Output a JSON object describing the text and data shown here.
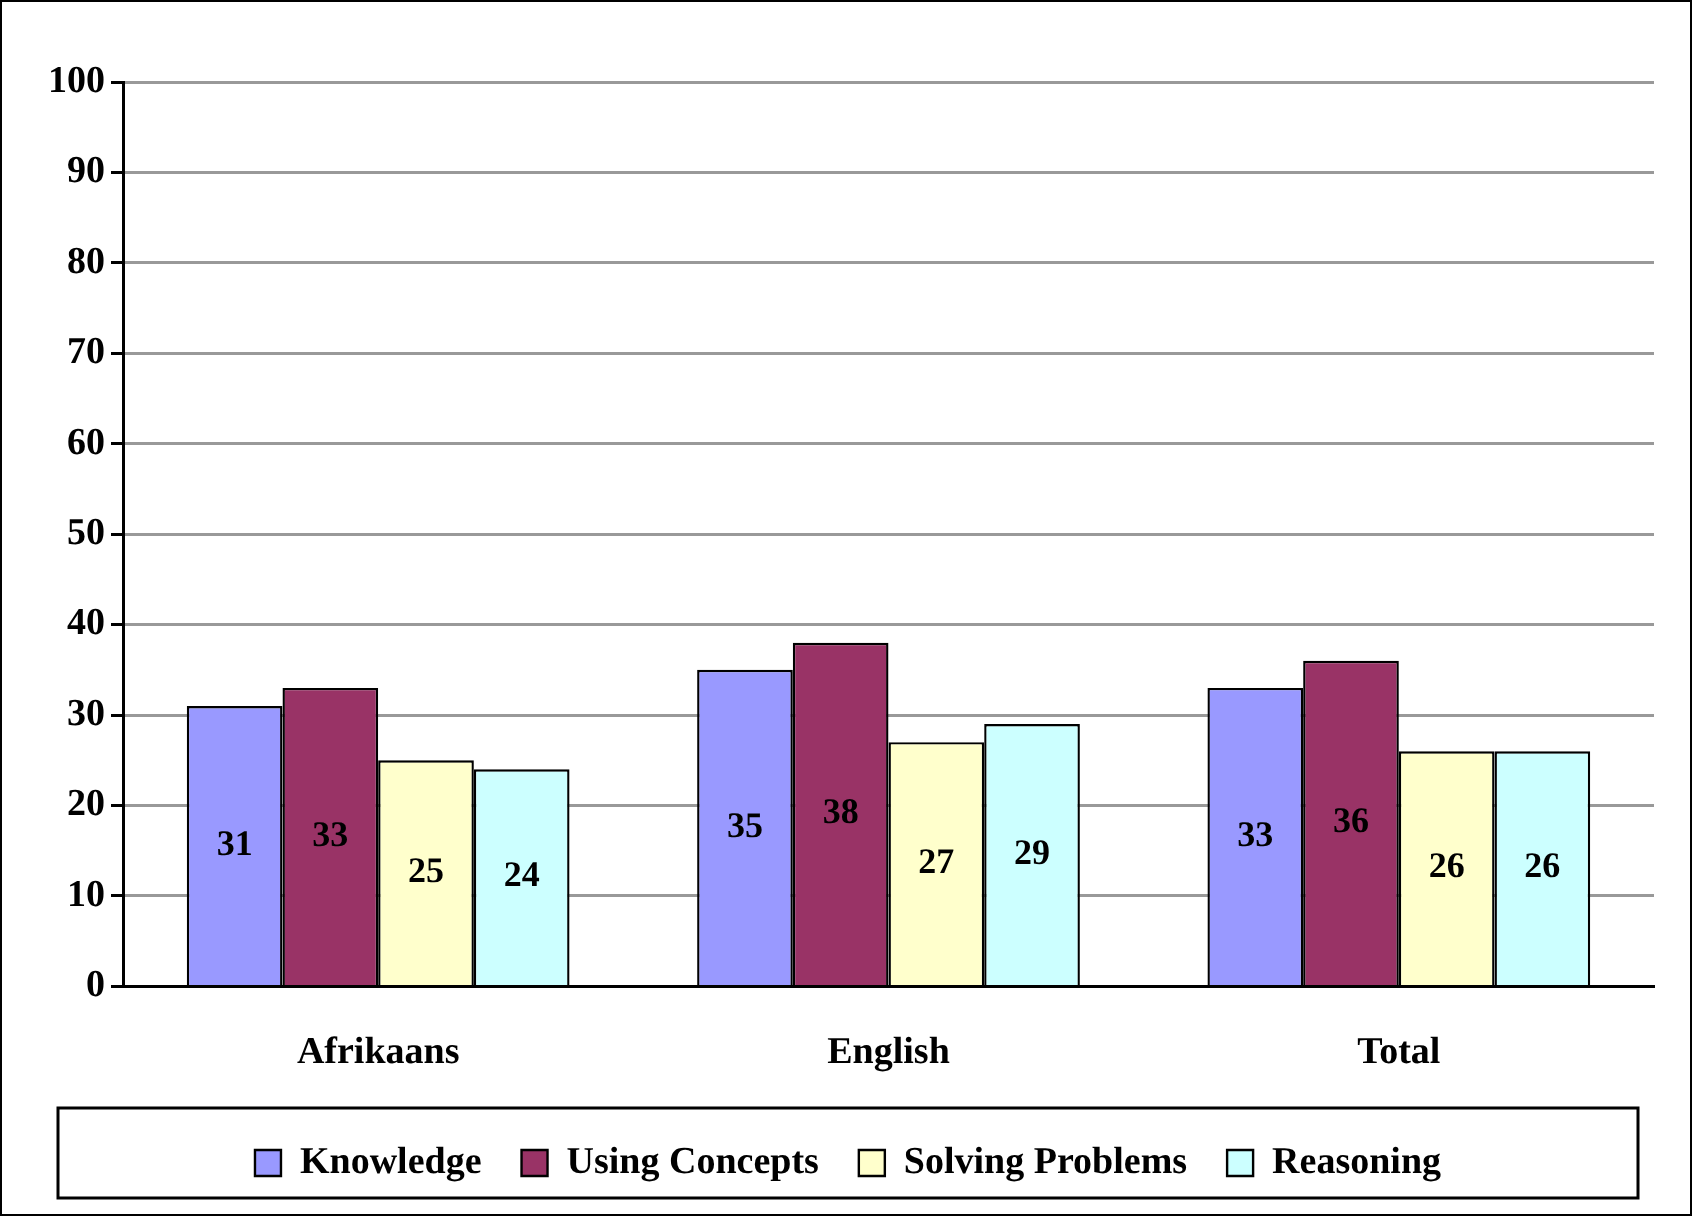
{
  "chart_data": {
    "type": "bar",
    "categories": [
      "Afrikaans",
      "English",
      "Total"
    ],
    "series": [
      {
        "name": "Knowledge",
        "color": "#9999ff",
        "values": [
          31,
          35,
          33
        ]
      },
      {
        "name": "Using Concepts",
        "color": "#993366",
        "values": [
          33,
          38,
          36
        ]
      },
      {
        "name": "Solving Problems",
        "color": "#ffffcc",
        "values": [
          25,
          27,
          26
        ]
      },
      {
        "name": "Reasoning",
        "color": "#ccffff",
        "values": [
          24,
          29,
          26
        ]
      }
    ],
    "ylim": [
      0,
      100
    ],
    "yticks": [
      0,
      10,
      20,
      30,
      40,
      50,
      60,
      70,
      80,
      90,
      100
    ],
    "grid": "y",
    "legend": "bottom",
    "data_labels": true
  }
}
